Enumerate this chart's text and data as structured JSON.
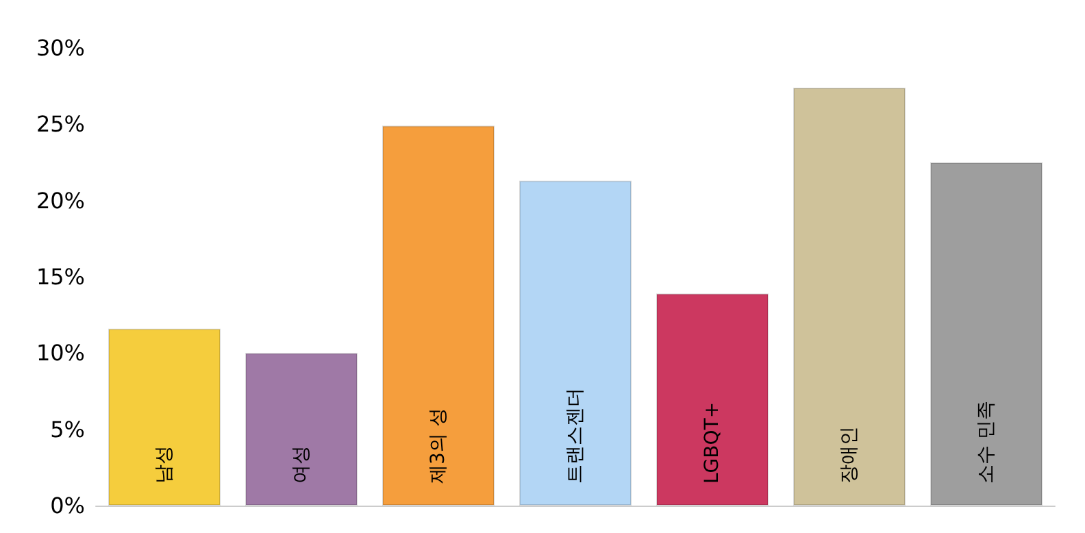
{
  "chart_data": {
    "type": "bar",
    "categories": [
      "남성",
      "여성",
      "제3의 성",
      "트랜스젠더",
      "LGBQT+",
      "장애인",
      "소수 민족"
    ],
    "values": [
      11.6,
      10.0,
      24.9,
      21.3,
      13.9,
      27.4,
      22.5
    ],
    "colors": [
      "#f5cd3d",
      "#9f79a6",
      "#f59e3d",
      "#b3d6f5",
      "#cc3860",
      "#cfc29a",
      "#9e9e9e"
    ],
    "ylim": [
      0,
      30
    ],
    "yticks": [
      {
        "value": 0,
        "label": "0%"
      },
      {
        "value": 5,
        "label": "5%"
      },
      {
        "value": 10,
        "label": "10%"
      },
      {
        "value": 15,
        "label": "15%"
      },
      {
        "value": 20,
        "label": "20%"
      },
      {
        "value": 25,
        "label": "25%"
      },
      {
        "value": 30,
        "label": "30%"
      }
    ],
    "grid": false
  }
}
